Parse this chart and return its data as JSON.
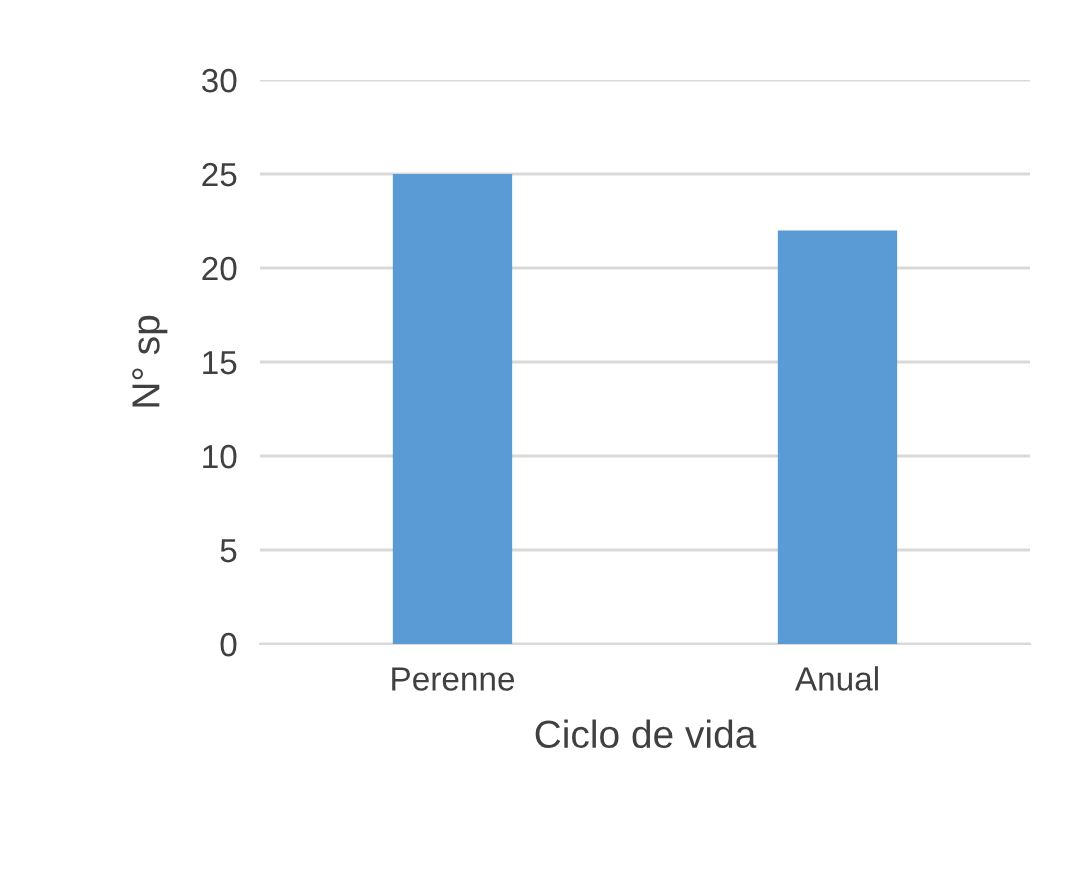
{
  "chart_data": {
    "type": "bar",
    "xlabel": "Ciclo de vida",
    "ylabel": "N° sp",
    "categories": [
      "Perenne",
      "Anual"
    ],
    "values": [
      25,
      22
    ],
    "color": "#5b9bd5",
    "ylim": [
      0,
      30
    ],
    "yticks": [
      0,
      5,
      10,
      15,
      20,
      25,
      30
    ],
    "grid": "y",
    "legend": false
  }
}
